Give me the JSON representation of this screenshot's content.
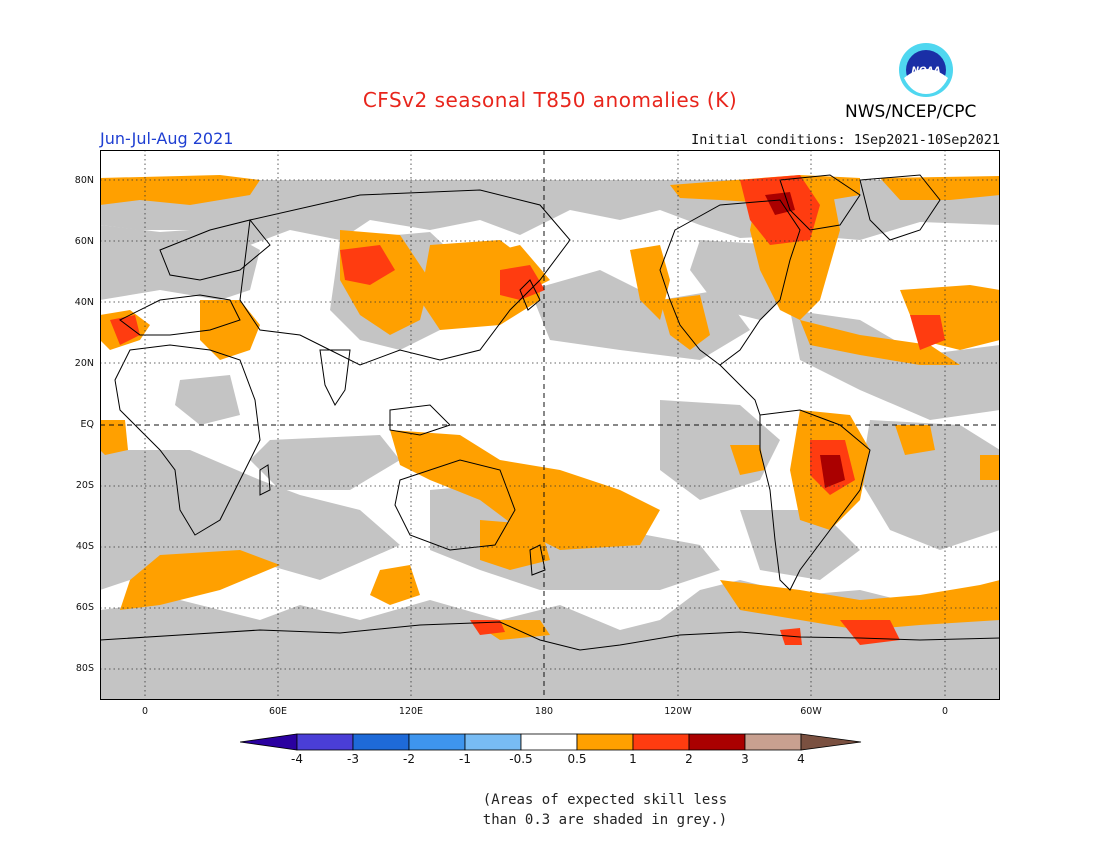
{
  "header": {
    "title": "CFSv2 seasonal T850 anomalies (K)",
    "org": "NWS/NCEP/CPC",
    "season": "Jun-Jul-Aug 2021",
    "initial_conditions": "Initial conditions: 1Sep2021-10Sep2021",
    "logo_text": "NOAA"
  },
  "map": {
    "lat_labels": [
      "80N",
      "60N",
      "40N",
      "20N",
      "EQ",
      "20S",
      "40S",
      "60S",
      "80S"
    ],
    "lon_labels": [
      "0",
      "60E",
      "120E",
      "180",
      "120W",
      "60W",
      "0"
    ],
    "colors": {
      "grey": "#c4c4c4",
      "orange": "#ffa000",
      "red": "#ff3c10",
      "darkred": "#aa0000",
      "coast": "#000000"
    }
  },
  "colorbar": {
    "labels": [
      "-4",
      "-3",
      "-2",
      "-1",
      "-0.5",
      "0.5",
      "1",
      "2",
      "3",
      "4"
    ],
    "colors": [
      "#2a00a0",
      "#4a3ed6",
      "#1e6ad8",
      "#3e95ee",
      "#78bcf4",
      "#ffffff",
      "#ffa000",
      "#ff3c10",
      "#aa0000",
      "#c8a090",
      "#7a5040"
    ]
  },
  "note": {
    "line1": "(Areas of expected skill less",
    "line2": "than 0.3 are shaded in grey.)"
  }
}
